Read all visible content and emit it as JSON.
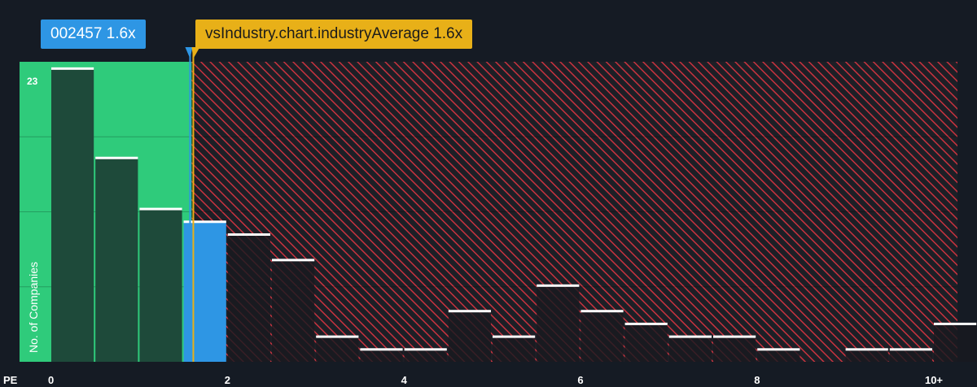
{
  "company_label": "002457 1.6x",
  "industry_label": "vsIndustry.chart.industryAverage 1.6x",
  "colors": {
    "background": "#151b24",
    "fair_zone": "#2fcb7b",
    "company": "#2e96e4",
    "industry": "#e8b018",
    "overvalued_hatch": "#c8333f",
    "bar_dark": "#1e4a3a",
    "bar_hatched": "#1d1f26"
  },
  "chart_data": {
    "type": "bar",
    "xlabel": "PE",
    "ylabel": "No. of Companies",
    "x_ticks": [
      "0",
      "2",
      "4",
      "6",
      "8",
      "10+"
    ],
    "x_tick_values": [
      0,
      2,
      4,
      6,
      8,
      10
    ],
    "y_max_label": "23",
    "ylim": [
      0,
      23.5
    ],
    "bin_width": 0.5,
    "bins": [
      {
        "x0": 0.0,
        "value": 23
      },
      {
        "x0": 0.5,
        "value": 16
      },
      {
        "x0": 1.0,
        "value": 12
      },
      {
        "x0": 1.5,
        "value": 11
      },
      {
        "x0": 2.0,
        "value": 10
      },
      {
        "x0": 2.5,
        "value": 8
      },
      {
        "x0": 3.0,
        "value": 2
      },
      {
        "x0": 3.5,
        "value": 1
      },
      {
        "x0": 4.0,
        "value": 1
      },
      {
        "x0": 4.5,
        "value": 4
      },
      {
        "x0": 5.0,
        "value": 2
      },
      {
        "x0": 5.5,
        "value": 6
      },
      {
        "x0": 6.0,
        "value": 4
      },
      {
        "x0": 6.5,
        "value": 3
      },
      {
        "x0": 7.0,
        "value": 2
      },
      {
        "x0": 7.5,
        "value": 2
      },
      {
        "x0": 8.0,
        "value": 1
      },
      {
        "x0": 8.5,
        "value": 0
      },
      {
        "x0": 9.0,
        "value": 1
      },
      {
        "x0": 9.5,
        "value": 1
      },
      {
        "x0": 10.0,
        "value": 3
      }
    ],
    "company_pe": 1.6,
    "industry_average_pe": 1.6
  }
}
